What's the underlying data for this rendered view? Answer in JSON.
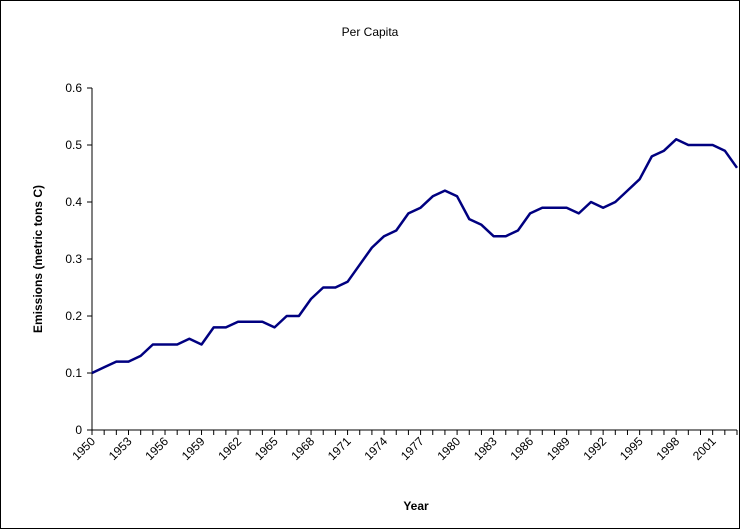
{
  "chart_data": {
    "type": "line",
    "title": "Per Capita",
    "x_label": "Year",
    "y_label": "Emissions (metric tons C)",
    "categories": [
      "1950",
      null,
      null,
      "1953",
      null,
      null,
      "1956",
      null,
      null,
      "1959",
      null,
      null,
      "1962",
      null,
      null,
      "1965",
      null,
      null,
      "1968",
      null,
      null,
      "1971",
      null,
      null,
      "1974",
      null,
      null,
      "1977",
      null,
      null,
      "1980",
      null,
      null,
      "1983",
      null,
      null,
      "1986",
      null,
      null,
      "1989",
      null,
      null,
      "1992",
      null,
      null,
      "1995",
      null,
      null,
      "1998",
      null,
      null,
      "2001",
      null,
      null
    ],
    "series": [
      {
        "name": "Per Capita",
        "color": "#000080",
        "values": [
          0.1,
          0.11,
          0.12,
          0.12,
          0.13,
          0.15,
          0.15,
          0.15,
          0.16,
          0.15,
          0.18,
          0.18,
          0.19,
          0.19,
          0.19,
          0.18,
          0.2,
          0.2,
          0.23,
          0.25,
          0.25,
          0.26,
          0.29,
          0.32,
          0.34,
          0.35,
          0.38,
          0.39,
          0.41,
          0.42,
          0.41,
          0.37,
          0.36,
          0.34,
          0.34,
          0.35,
          0.38,
          0.39,
          0.39,
          0.39,
          0.38,
          0.4,
          0.39,
          0.4,
          0.42,
          0.44,
          0.48,
          0.49,
          0.51,
          0.5,
          0.5,
          0.5,
          0.49,
          0.46
        ]
      }
    ],
    "ylim": [
      0,
      0.6
    ],
    "yticks": [
      0,
      0.1,
      0.2,
      0.3,
      0.4,
      0.5,
      0.6
    ],
    "grid": false
  }
}
